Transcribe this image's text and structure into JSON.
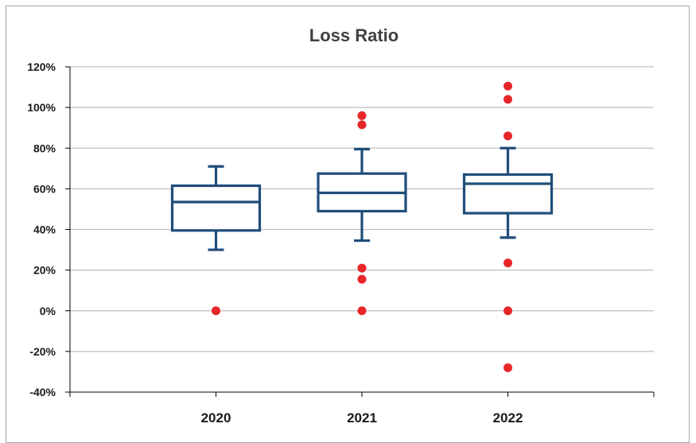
{
  "chart_data": {
    "type": "box",
    "title": "Loss Ratio",
    "categories": [
      "2020",
      "2021",
      "2022"
    ],
    "ylim": [
      -0.4,
      1.2
    ],
    "y_ticks": [
      -0.4,
      -0.2,
      0,
      0.2,
      0.4,
      0.6,
      0.8,
      1.0,
      1.2
    ],
    "y_tick_labels": [
      "-40%",
      "-20%",
      "0%",
      "20%",
      "40%",
      "60%",
      "80%",
      "100%",
      "120%"
    ],
    "grid": true,
    "boxes": [
      {
        "category": "2020",
        "whisker_low": 0.3,
        "q1": 0.395,
        "median": 0.535,
        "q3": 0.615,
        "whisker_high": 0.71,
        "outliers": [
          0.0
        ]
      },
      {
        "category": "2021",
        "whisker_low": 0.345,
        "q1": 0.49,
        "median": 0.58,
        "q3": 0.675,
        "whisker_high": 0.795,
        "outliers": [
          0.96,
          0.915,
          0.21,
          0.155,
          0.0
        ]
      },
      {
        "category": "2022",
        "whisker_low": 0.36,
        "q1": 0.48,
        "median": 0.625,
        "q3": 0.67,
        "whisker_high": 0.8,
        "outliers": [
          1.105,
          1.04,
          0.86,
          0.235,
          0.0,
          -0.28
        ]
      }
    ],
    "colors": {
      "box": "#1f4e79",
      "outlier": "#e8262a",
      "grid": "#bfbfbf",
      "axis": "#000000"
    }
  }
}
